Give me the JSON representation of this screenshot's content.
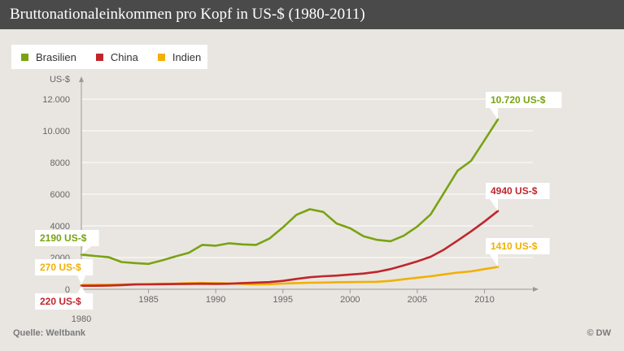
{
  "title": "Bruttonationaleinkommen pro Kopf in US-$ (1980-2011)",
  "source": "Quelle: Weltbank",
  "copyright": "© DW",
  "colors": {
    "Brasilien": "#79a312",
    "China": "#c0262b",
    "Indien": "#f1b000"
  },
  "chart_data": {
    "type": "line",
    "ylabel": "US-$",
    "ylim": [
      0,
      12000
    ],
    "xlim": [
      1980,
      2011
    ],
    "y_ticks": [
      0,
      2000,
      4000,
      6000,
      8000,
      10000,
      12000
    ],
    "y_tick_labels": [
      "0",
      "2000",
      "4000",
      "6000",
      "8000",
      "10.000",
      "12.000"
    ],
    "x_ticks": [
      1980,
      1985,
      1990,
      1995,
      2000,
      2005,
      2010
    ],
    "x_tick_labels": [
      "1980",
      "1985",
      "1990",
      "1995",
      "2000",
      "2005",
      "2010"
    ],
    "grid": true,
    "legend_position": "top-left",
    "x": [
      1980,
      1981,
      1982,
      1983,
      1984,
      1985,
      1986,
      1987,
      1988,
      1989,
      1990,
      1991,
      1992,
      1993,
      1994,
      1995,
      1996,
      1997,
      1998,
      1999,
      2000,
      2001,
      2002,
      2003,
      2004,
      2005,
      2006,
      2007,
      2008,
      2009,
      2010,
      2011
    ],
    "series": [
      {
        "name": "Brasilien",
        "values": [
          2190,
          2100,
          2030,
          1720,
          1650,
          1600,
          1820,
          2070,
          2300,
          2800,
          2750,
          2900,
          2830,
          2800,
          3200,
          3900,
          4700,
          5050,
          4880,
          4150,
          3850,
          3350,
          3120,
          3030,
          3380,
          3960,
          4730,
          6100,
          7480,
          8100,
          9400,
          10720
        ]
      },
      {
        "name": "China",
        "values": [
          220,
          220,
          230,
          260,
          300,
          310,
          320,
          330,
          340,
          350,
          340,
          350,
          390,
          420,
          450,
          530,
          650,
          760,
          820,
          860,
          930,
          990,
          1100,
          1270,
          1510,
          1760,
          2050,
          2510,
          3070,
          3650,
          4270,
          4940
        ]
      },
      {
        "name": "Indien",
        "values": [
          270,
          275,
          290,
          300,
          320,
          330,
          350,
          360,
          390,
          400,
          390,
          370,
          340,
          300,
          320,
          360,
          390,
          410,
          420,
          440,
          450,
          460,
          470,
          530,
          630,
          730,
          820,
          940,
          1050,
          1130,
          1270,
          1410
        ]
      }
    ],
    "annotations": [
      {
        "series": "Brasilien",
        "year": 1980,
        "text": "2190 US-$"
      },
      {
        "series": "China",
        "year": 1980,
        "text": "220 US-$"
      },
      {
        "series": "Indien",
        "year": 1980,
        "text": "270 US-$"
      },
      {
        "series": "Brasilien",
        "year": 2011,
        "text": "10.720 US-$"
      },
      {
        "series": "China",
        "year": 2011,
        "text": "4940 US-$"
      },
      {
        "series": "Indien",
        "year": 2011,
        "text": "1410 US-$"
      }
    ]
  }
}
